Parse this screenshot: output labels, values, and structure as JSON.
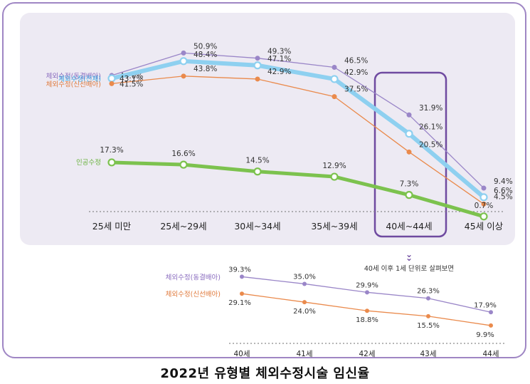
{
  "caption": "2022년 유형별 체외수정시술 임신율",
  "note": "40세 이후 1세 단위로 살펴보면",
  "note_icon": "double-chevron-down-icon",
  "colors": {
    "frozen": "#9a86c8",
    "total": "#8ed0f0",
    "fresh": "#ea8a4c",
    "iui": "#7cc24e",
    "highlight": "#6f4aa0",
    "frozen_label": "#8a6cbf",
    "total_label": "#3aa6df",
    "fresh_label": "#e07a3c",
    "iui_label": "#6ab33e"
  },
  "chart_data": [
    {
      "type": "line",
      "categories": [
        "25세 미만",
        "25세~29세",
        "30세~34세",
        "35세~39세",
        "40세~44세",
        "45세 이상"
      ],
      "highlight_category": "40세~44세",
      "series": [
        {
          "key": "frozen",
          "name": "체외수정(동결배아)",
          "values": [
            44.0,
            50.9,
            49.3,
            46.5,
            31.9,
            9.4
          ],
          "labels": [
            "44.0%",
            "50.9%",
            "49.3%",
            "46.5%",
            "31.9%",
            "9.4%"
          ]
        },
        {
          "key": "total",
          "name": "체외수정(전체)",
          "values": [
            43.1,
            48.4,
            47.1,
            42.9,
            26.1,
            6.6
          ],
          "labels": [
            "43.1%",
            "48.4%",
            "47.1%",
            "42.9%",
            "26.1%",
            "6.6%"
          ]
        },
        {
          "key": "fresh",
          "name": "체외수정(신선배아)",
          "values": [
            41.5,
            43.8,
            42.9,
            37.5,
            20.5,
            4.5
          ],
          "labels": [
            "41.5%",
            "43.8%",
            "42.9%",
            "37.5%",
            "20.5%",
            "4.5%"
          ]
        },
        {
          "key": "iui",
          "name": "인공수정",
          "values": [
            17.3,
            16.6,
            14.5,
            12.9,
            7.3,
            0.7
          ],
          "labels": [
            "17.3%",
            "16.6%",
            "14.5%",
            "12.9%",
            "7.3%",
            "0.7%"
          ]
        }
      ]
    },
    {
      "type": "line",
      "categories": [
        "40세",
        "41세",
        "42세",
        "43세",
        "44세"
      ],
      "series": [
        {
          "key": "frozen",
          "name": "체외수정(동결배아)",
          "values": [
            39.3,
            35.0,
            29.9,
            26.3,
            17.9
          ],
          "labels": [
            "39.3%",
            "35.0%",
            "29.9%",
            "26.3%",
            "17.9%"
          ]
        },
        {
          "key": "fresh",
          "name": "체외수정(신선배아)",
          "values": [
            29.1,
            24.0,
            18.8,
            15.5,
            9.9
          ],
          "labels": [
            "29.1%",
            "24.0%",
            "18.8%",
            "15.5%",
            "9.9%"
          ]
        }
      ]
    }
  ]
}
